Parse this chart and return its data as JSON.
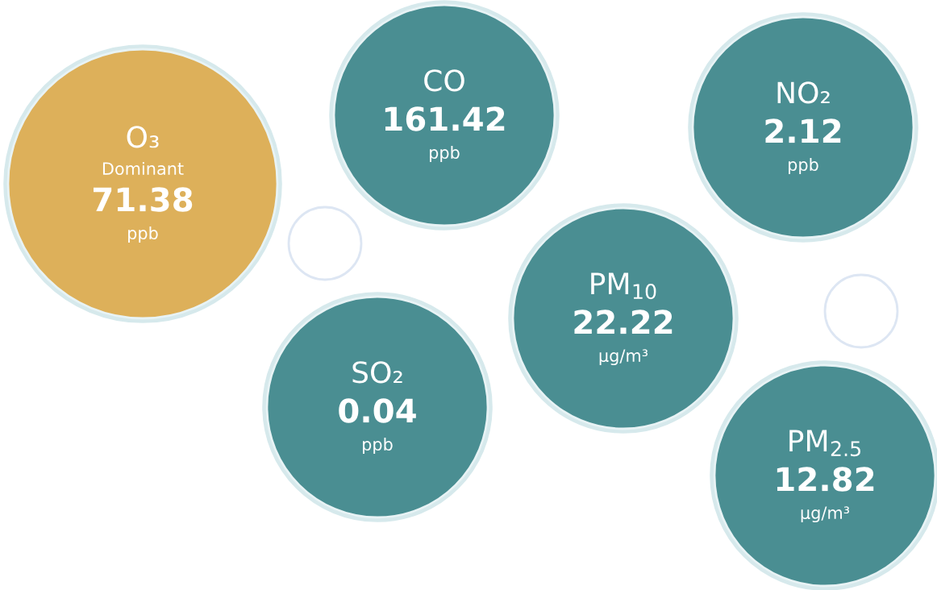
{
  "chart_data": {
    "type": "other",
    "categories": [
      "O₃",
      "CO",
      "NO₂",
      "PM$_{10}$",
      "SO₂",
      "PM$_{2.5}$"
    ],
    "values": [
      71.38,
      161.42,
      2.12,
      22.22,
      0.04,
      12.82
    ],
    "colors": [
      "#ddb05a",
      "#4a8e92",
      "#4a8e92",
      "#4a8e92",
      "#4a8e92",
      "#4a8e92"
    ],
    "data_labels": true,
    "annotations": [
      {
        "text": "Dominant",
        "x": "O₃"
      },
      {
        "text": "ppb",
        "x": "O₃"
      },
      {
        "text": "ppb",
        "x": "CO"
      },
      {
        "text": "ppb",
        "x": "NO₂"
      },
      {
        "text": "µg/m³",
        "x": "PM$_{10}$"
      },
      {
        "text": "ppb",
        "x": "SO₂"
      },
      {
        "text": "µg/m³",
        "x": "PM$_{2.5}$"
      }
    ]
  }
}
